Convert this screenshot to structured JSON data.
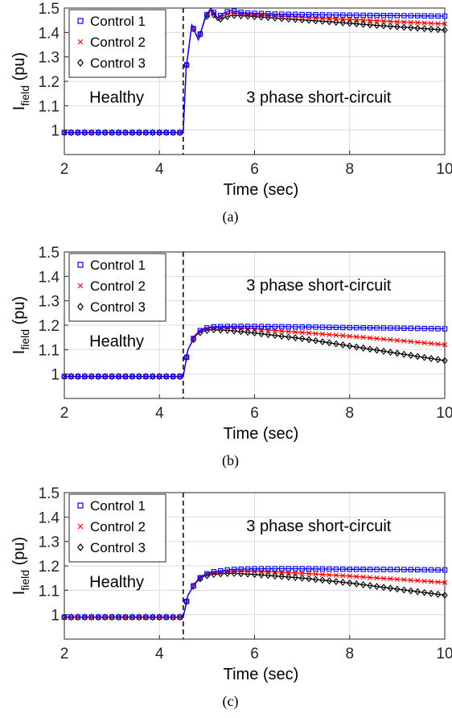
{
  "chart_data": [
    {
      "type": "line",
      "panel_label": "(a)",
      "xlabel": "Time (sec)",
      "ylabel": {
        "main": "I",
        "sub": "field",
        "unit": " (pu)"
      },
      "xlim": [
        2,
        10
      ],
      "ylim": [
        0.9,
        1.5
      ],
      "xticks": [
        2,
        4,
        6,
        8,
        10
      ],
      "yticks": [
        1,
        1.1,
        1.2,
        1.3,
        1.4,
        1.5
      ],
      "grid": true,
      "fault_time": 4.5,
      "annotations": [
        {
          "text": "Healthy",
          "x": 3.1,
          "y": 1.135
        },
        {
          "text": "3 phase short-circuit",
          "x": 7.35,
          "y": 1.135
        }
      ],
      "legend": {
        "location": "top-left"
      },
      "series": [
        {
          "name": "Control 1",
          "color": "#0000ff",
          "marker": "square",
          "points": [
            [
              2,
              0.99
            ],
            [
              4.5,
              0.99
            ],
            [
              4.56,
              1.25
            ],
            [
              4.68,
              1.43
            ],
            [
              4.82,
              1.37
            ],
            [
              4.96,
              1.46
            ],
            [
              5.08,
              1.5
            ],
            [
              5.22,
              1.46
            ],
            [
              5.36,
              1.48
            ],
            [
              5.5,
              1.49
            ],
            [
              5.8,
              1.48
            ],
            [
              6.5,
              1.475
            ],
            [
              7.5,
              1.472
            ],
            [
              8.5,
              1.47
            ],
            [
              10,
              1.467
            ]
          ]
        },
        {
          "name": "Control 2",
          "color": "#ff0000",
          "marker": "x",
          "points": [
            [
              2,
              0.99
            ],
            [
              4.5,
              0.99
            ],
            [
              4.56,
              1.25
            ],
            [
              4.68,
              1.43
            ],
            [
              4.82,
              1.37
            ],
            [
              4.96,
              1.46
            ],
            [
              5.08,
              1.49
            ],
            [
              5.22,
              1.46
            ],
            [
              5.36,
              1.47
            ],
            [
              5.5,
              1.48
            ],
            [
              5.8,
              1.475
            ],
            [
              6.5,
              1.467
            ],
            [
              7.5,
              1.458
            ],
            [
              8.5,
              1.449
            ],
            [
              10,
              1.435
            ]
          ]
        },
        {
          "name": "Control 3",
          "color": "#000000",
          "marker": "diamond",
          "points": [
            [
              2,
              0.99
            ],
            [
              4.5,
              0.99
            ],
            [
              4.56,
              1.25
            ],
            [
              4.68,
              1.43
            ],
            [
              4.82,
              1.37
            ],
            [
              4.96,
              1.455
            ],
            [
              5.08,
              1.49
            ],
            [
              5.22,
              1.45
            ],
            [
              5.36,
              1.46
            ],
            [
              5.5,
              1.47
            ],
            [
              5.8,
              1.468
            ],
            [
              6.5,
              1.458
            ],
            [
              7.5,
              1.445
            ],
            [
              8.5,
              1.43
            ],
            [
              10,
              1.41
            ]
          ]
        }
      ]
    },
    {
      "type": "line",
      "panel_label": "(b)",
      "xlabel": "Time (sec)",
      "ylabel": {
        "main": "I",
        "sub": "field",
        "unit": " (pu)"
      },
      "xlim": [
        2,
        10
      ],
      "ylim": [
        0.9,
        1.5
      ],
      "xticks": [
        2,
        4,
        6,
        8,
        10
      ],
      "yticks": [
        1,
        1.1,
        1.2,
        1.3,
        1.4,
        1.5
      ],
      "grid": true,
      "fault_time": 4.5,
      "annotations": [
        {
          "text": "Healthy",
          "x": 3.1,
          "y": 1.135
        },
        {
          "text": "3 phase short-circuit",
          "x": 7.35,
          "y": 1.365
        }
      ],
      "legend": {
        "location": "top-left"
      },
      "series": [
        {
          "name": "Control 1",
          "color": "#0000ff",
          "marker": "square",
          "points": [
            [
              2,
              0.99
            ],
            [
              4.5,
              0.99
            ],
            [
              4.6,
              1.1
            ],
            [
              4.75,
              1.16
            ],
            [
              4.9,
              1.185
            ],
            [
              5.1,
              1.193
            ],
            [
              5.5,
              1.195
            ],
            [
              6,
              1.195
            ],
            [
              7,
              1.193
            ],
            [
              8,
              1.19
            ],
            [
              9,
              1.188
            ],
            [
              10,
              1.185
            ]
          ]
        },
        {
          "name": "Control 2",
          "color": "#ff0000",
          "marker": "x",
          "points": [
            [
              2,
              0.99
            ],
            [
              4.5,
              0.99
            ],
            [
              4.6,
              1.1
            ],
            [
              4.75,
              1.155
            ],
            [
              4.9,
              1.18
            ],
            [
              5.1,
              1.19
            ],
            [
              5.5,
              1.19
            ],
            [
              6,
              1.185
            ],
            [
              7,
              1.17
            ],
            [
              8,
              1.155
            ],
            [
              9,
              1.138
            ],
            [
              10,
              1.12
            ]
          ]
        },
        {
          "name": "Control 3",
          "color": "#000000",
          "marker": "diamond",
          "points": [
            [
              2,
              0.99
            ],
            [
              4.5,
              0.99
            ],
            [
              4.6,
              1.1
            ],
            [
              4.75,
              1.155
            ],
            [
              4.9,
              1.175
            ],
            [
              5.1,
              1.182
            ],
            [
              5.5,
              1.178
            ],
            [
              6,
              1.168
            ],
            [
              7,
              1.145
            ],
            [
              8,
              1.115
            ],
            [
              9,
              1.085
            ],
            [
              10,
              1.055
            ]
          ]
        }
      ]
    },
    {
      "type": "line",
      "panel_label": "(c)",
      "xlabel": "Time (sec)",
      "ylabel": {
        "main": "I",
        "sub": "field",
        "unit": " (pu)"
      },
      "xlim": [
        2,
        10
      ],
      "ylim": [
        0.9,
        1.5
      ],
      "xticks": [
        2,
        4,
        6,
        8,
        10
      ],
      "yticks": [
        1,
        1.1,
        1.2,
        1.3,
        1.4,
        1.5
      ],
      "grid": true,
      "fault_time": 4.5,
      "annotations": [
        {
          "text": "Healthy",
          "x": 3.1,
          "y": 1.135
        },
        {
          "text": "3 phase short-circuit",
          "x": 7.35,
          "y": 1.365
        }
      ],
      "legend": {
        "location": "top-left"
      },
      "series": [
        {
          "name": "Control 1",
          "color": "#0000ff",
          "marker": "square",
          "points": [
            [
              2,
              0.99
            ],
            [
              4.5,
              0.99
            ],
            [
              4.6,
              1.08
            ],
            [
              4.75,
              1.13
            ],
            [
              4.9,
              1.16
            ],
            [
              5.1,
              1.175
            ],
            [
              5.5,
              1.185
            ],
            [
              6,
              1.188
            ],
            [
              7,
              1.188
            ],
            [
              8,
              1.186
            ],
            [
              9,
              1.185
            ],
            [
              10,
              1.183
            ]
          ]
        },
        {
          "name": "Control 2",
          "color": "#ff0000",
          "marker": "x",
          "points": [
            [
              2,
              0.99
            ],
            [
              4.5,
              0.99
            ],
            [
              4.6,
              1.08
            ],
            [
              4.75,
              1.13
            ],
            [
              4.9,
              1.158
            ],
            [
              5.1,
              1.17
            ],
            [
              5.5,
              1.178
            ],
            [
              6,
              1.178
            ],
            [
              7,
              1.17
            ],
            [
              8,
              1.158
            ],
            [
              9,
              1.145
            ],
            [
              10,
              1.132
            ]
          ]
        },
        {
          "name": "Control 3",
          "color": "#000000",
          "marker": "diamond",
          "points": [
            [
              2,
              0.99
            ],
            [
              4.5,
              0.99
            ],
            [
              4.6,
              1.08
            ],
            [
              4.75,
              1.128
            ],
            [
              4.9,
              1.155
            ],
            [
              5.1,
              1.165
            ],
            [
              5.5,
              1.17
            ],
            [
              6,
              1.165
            ],
            [
              7,
              1.15
            ],
            [
              8,
              1.13
            ],
            [
              9,
              1.105
            ],
            [
              10,
              1.08
            ]
          ]
        }
      ]
    }
  ]
}
